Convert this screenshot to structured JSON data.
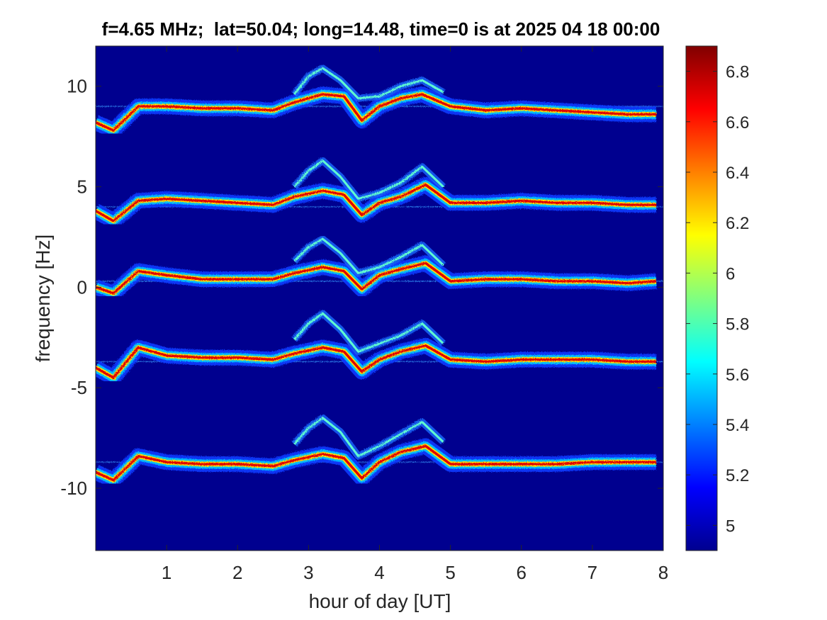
{
  "chart_data": {
    "type": "heatmap",
    "title": "f=4.65 MHz;  lat=50.04; long=14.48, time=0 is at 2025 04 18 00:00",
    "xlabel": "hour of day [UT]",
    "ylabel": "frequency [Hz]",
    "xlim": [
      0,
      8
    ],
    "ylim": [
      -13.1,
      12
    ],
    "x_ticks": [
      1,
      2,
      3,
      4,
      5,
      6,
      7,
      8
    ],
    "y_ticks": [
      -10,
      -5,
      0,
      5,
      10
    ],
    "grid": false,
    "colorbar": {
      "range": [
        4.9,
        6.9
      ],
      "ticks": [
        5,
        5.2,
        5.4,
        5.6,
        5.8,
        6,
        6.2,
        6.4,
        6.6,
        6.8
      ],
      "colormap": "jet"
    },
    "background_color": "#00008f",
    "traces": [
      {
        "baseline_hz": 9,
        "core": [
          [
            0,
            8.2
          ],
          [
            0.25,
            7.8
          ],
          [
            0.6,
            9.0
          ],
          [
            1.0,
            9.0
          ],
          [
            1.5,
            8.9
          ],
          [
            2.0,
            8.9
          ],
          [
            2.5,
            8.8
          ],
          [
            2.8,
            9.2
          ],
          [
            3.2,
            9.6
          ],
          [
            3.5,
            9.5
          ],
          [
            3.75,
            8.3
          ],
          [
            4.0,
            9.0
          ],
          [
            4.3,
            9.4
          ],
          [
            4.6,
            9.6
          ],
          [
            5.0,
            9.0
          ],
          [
            5.5,
            8.8
          ],
          [
            6.0,
            8.9
          ],
          [
            6.5,
            8.8
          ],
          [
            7.0,
            8.7
          ],
          [
            7.5,
            8.6
          ],
          [
            7.9,
            8.6
          ]
        ],
        "upper_echo": [
          [
            2.8,
            9.6
          ],
          [
            3.0,
            10.5
          ],
          [
            3.2,
            10.9
          ],
          [
            3.45,
            10.3
          ],
          [
            3.7,
            9.4
          ],
          [
            4.0,
            9.5
          ],
          [
            4.3,
            10.0
          ],
          [
            4.6,
            10.3
          ],
          [
            4.9,
            9.7
          ]
        ]
      },
      {
        "baseline_hz": 4,
        "core": [
          [
            0,
            3.8
          ],
          [
            0.25,
            3.3
          ],
          [
            0.6,
            4.3
          ],
          [
            1.0,
            4.4
          ],
          [
            1.5,
            4.3
          ],
          [
            2.0,
            4.2
          ],
          [
            2.5,
            4.1
          ],
          [
            2.8,
            4.5
          ],
          [
            3.2,
            4.8
          ],
          [
            3.5,
            4.6
          ],
          [
            3.75,
            3.6
          ],
          [
            4.0,
            4.2
          ],
          [
            4.3,
            4.5
          ],
          [
            4.65,
            5.1
          ],
          [
            5.0,
            4.2
          ],
          [
            5.5,
            4.2
          ],
          [
            6.0,
            4.3
          ],
          [
            6.5,
            4.2
          ],
          [
            7.0,
            4.2
          ],
          [
            7.5,
            4.1
          ],
          [
            7.9,
            4.1
          ]
        ],
        "upper_echo": [
          [
            2.8,
            5.0
          ],
          [
            3.0,
            5.8
          ],
          [
            3.2,
            6.3
          ],
          [
            3.45,
            5.5
          ],
          [
            3.7,
            4.4
          ],
          [
            4.0,
            4.7
          ],
          [
            4.3,
            5.2
          ],
          [
            4.6,
            6.0
          ],
          [
            4.9,
            5.0
          ]
        ]
      },
      {
        "baseline_hz": 0.3,
        "core": [
          [
            0,
            0
          ],
          [
            0.25,
            -0.3
          ],
          [
            0.6,
            0.8
          ],
          [
            1.0,
            0.6
          ],
          [
            1.5,
            0.4
          ],
          [
            2.0,
            0.4
          ],
          [
            2.5,
            0.4
          ],
          [
            2.8,
            0.7
          ],
          [
            3.2,
            1.0
          ],
          [
            3.5,
            0.8
          ],
          [
            3.75,
            -0.1
          ],
          [
            4.0,
            0.6
          ],
          [
            4.3,
            0.9
          ],
          [
            4.65,
            1.2
          ],
          [
            5.0,
            0.3
          ],
          [
            5.5,
            0.4
          ],
          [
            6.0,
            0.4
          ],
          [
            6.5,
            0.3
          ],
          [
            7.0,
            0.3
          ],
          [
            7.5,
            0.2
          ],
          [
            7.9,
            0.3
          ]
        ],
        "upper_echo": [
          [
            2.8,
            1.3
          ],
          [
            3.0,
            2.0
          ],
          [
            3.2,
            2.4
          ],
          [
            3.45,
            1.7
          ],
          [
            3.7,
            0.7
          ],
          [
            4.0,
            1.0
          ],
          [
            4.3,
            1.5
          ],
          [
            4.6,
            2.1
          ],
          [
            4.9,
            1.1
          ]
        ]
      },
      {
        "baseline_hz": -3.7,
        "core": [
          [
            0,
            -4.0
          ],
          [
            0.25,
            -4.5
          ],
          [
            0.6,
            -3.0
          ],
          [
            1.0,
            -3.4
          ],
          [
            1.5,
            -3.5
          ],
          [
            2.0,
            -3.5
          ],
          [
            2.5,
            -3.6
          ],
          [
            2.8,
            -3.3
          ],
          [
            3.2,
            -3.0
          ],
          [
            3.5,
            -3.2
          ],
          [
            3.75,
            -4.2
          ],
          [
            4.0,
            -3.6
          ],
          [
            4.3,
            -3.2
          ],
          [
            4.65,
            -2.9
          ],
          [
            5.0,
            -3.6
          ],
          [
            5.5,
            -3.7
          ],
          [
            6.0,
            -3.6
          ],
          [
            6.5,
            -3.6
          ],
          [
            7.0,
            -3.6
          ],
          [
            7.5,
            -3.7
          ],
          [
            7.9,
            -3.7
          ]
        ],
        "upper_echo": [
          [
            2.8,
            -2.6
          ],
          [
            3.0,
            -1.8
          ],
          [
            3.2,
            -1.3
          ],
          [
            3.45,
            -2.1
          ],
          [
            3.7,
            -3.2
          ],
          [
            4.0,
            -2.8
          ],
          [
            4.3,
            -2.4
          ],
          [
            4.6,
            -1.8
          ],
          [
            4.9,
            -2.8
          ]
        ]
      },
      {
        "baseline_hz": -8.7,
        "core": [
          [
            0,
            -9.2
          ],
          [
            0.25,
            -9.6
          ],
          [
            0.6,
            -8.4
          ],
          [
            1.0,
            -8.7
          ],
          [
            1.5,
            -8.8
          ],
          [
            2.0,
            -8.8
          ],
          [
            2.5,
            -8.9
          ],
          [
            2.8,
            -8.6
          ],
          [
            3.2,
            -8.3
          ],
          [
            3.5,
            -8.5
          ],
          [
            3.75,
            -9.5
          ],
          [
            4.0,
            -8.7
          ],
          [
            4.3,
            -8.2
          ],
          [
            4.65,
            -7.9
          ],
          [
            5.0,
            -8.8
          ],
          [
            5.5,
            -8.8
          ],
          [
            6.0,
            -8.8
          ],
          [
            6.5,
            -8.8
          ],
          [
            7.0,
            -8.7
          ],
          [
            7.5,
            -8.7
          ],
          [
            7.9,
            -8.7
          ]
        ],
        "upper_echo": [
          [
            2.8,
            -7.8
          ],
          [
            3.0,
            -7.0
          ],
          [
            3.2,
            -6.5
          ],
          [
            3.45,
            -7.2
          ],
          [
            3.7,
            -8.4
          ],
          [
            4.0,
            -7.9
          ],
          [
            4.3,
            -7.3
          ],
          [
            4.6,
            -6.7
          ],
          [
            4.9,
            -7.7
          ]
        ]
      }
    ]
  }
}
